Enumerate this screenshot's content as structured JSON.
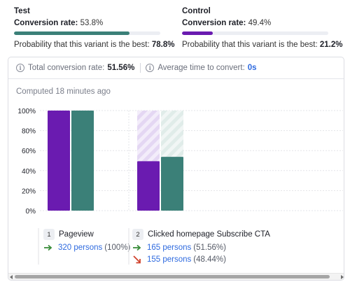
{
  "variants": [
    {
      "name": "Test",
      "rate_label": "Conversion rate:",
      "rate_value": "53.8%",
      "prob_label": "Probability that this variant is the best:",
      "prob_value": "78.8%",
      "bar_fraction": 0.79,
      "color": "#3b8078"
    },
    {
      "name": "Control",
      "rate_label": "Conversion rate:",
      "rate_value": "49.4%",
      "prob_label": "Probability that this variant is the best:",
      "prob_value": "21.2%",
      "bar_fraction": 0.21,
      "color": "#6a1bb0"
    }
  ],
  "summary": {
    "total_label": "Total conversion rate:",
    "total_value": "51.56%",
    "time_label": "Average time to convert:",
    "time_value": "0s",
    "icon": "info-icon"
  },
  "computed_text": "Computed 18 minutes ago",
  "chart_data": {
    "type": "bar",
    "categories": [
      "Pageview",
      "Clicked homepage Subscribe CTA"
    ],
    "series": [
      {
        "values": [
          100,
          49.4
        ],
        "color": "#6a1bb0"
      },
      {
        "values": [
          100,
          53.8
        ],
        "color": "#3b8078"
      }
    ],
    "yticks": [
      "100%",
      "80%",
      "60%",
      "40%",
      "20%",
      "0%"
    ],
    "ylim": [
      0,
      100
    ],
    "grid": true
  },
  "steps": [
    {
      "number": "1",
      "name": "Pageview",
      "rows": [
        {
          "direction": "up",
          "persons": "320 persons",
          "pct": "(100%)"
        }
      ]
    },
    {
      "number": "2",
      "name": "Clicked homepage Subscribe CTA",
      "rows": [
        {
          "direction": "up",
          "persons": "165 persons",
          "pct": "(51.56%)"
        },
        {
          "direction": "down",
          "persons": "155 persons",
          "pct": "(48.44%)"
        }
      ]
    }
  ],
  "colors": {
    "arrow_up": "#3a8d3a",
    "arrow_down": "#d0412b",
    "link": "#2e6adf"
  }
}
